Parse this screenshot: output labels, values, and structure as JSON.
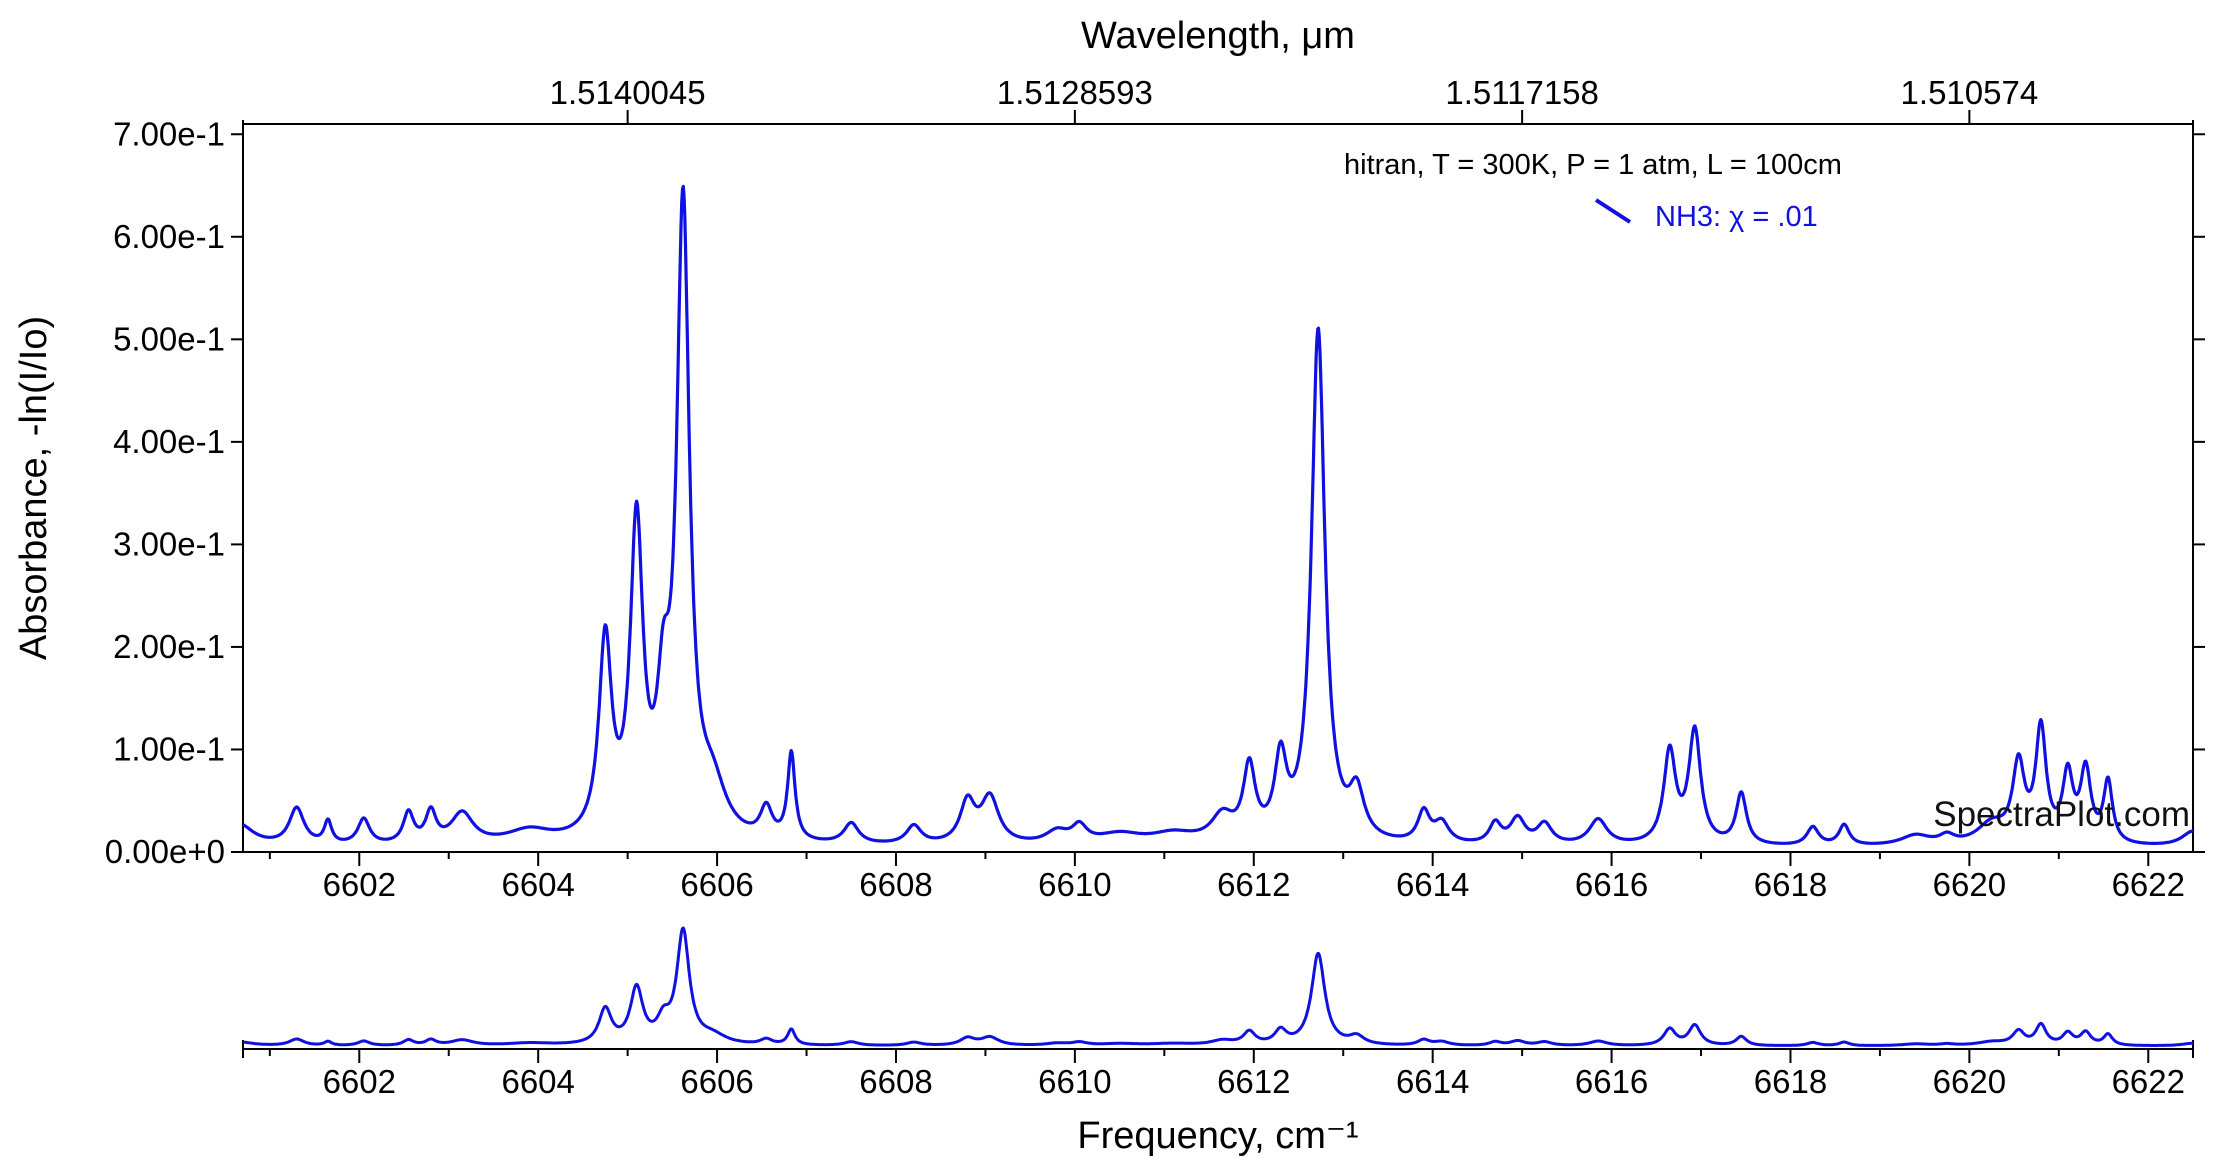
{
  "chart_data": {
    "type": "line",
    "title": "",
    "xlabel": "Frequency, cm⁻¹",
    "ylabel": "Absorbance, -ln(I/Io)",
    "top_axis_label": "Wavelength, μm",
    "top_tick_labels": [
      "1.5140045",
      "1.5128593",
      "1.5117158",
      "1.510574"
    ],
    "top_tick_positions": [
      6605.0,
      6610.0,
      6615.0,
      6620.0
    ],
    "xlim": [
      6600.7,
      6622.5
    ],
    "ylim": [
      0,
      0.71
    ],
    "x_ticks": [
      6602,
      6604,
      6606,
      6608,
      6610,
      6612,
      6614,
      6616,
      6618,
      6620,
      6622
    ],
    "x_tick_labels": [
      "6602",
      "6604",
      "6606",
      "6608",
      "6610",
      "6612",
      "6614",
      "6616",
      "6618",
      "6620",
      "6622"
    ],
    "y_ticks": [
      0,
      0.1,
      0.2,
      0.3,
      0.4,
      0.5,
      0.6,
      0.7
    ],
    "y_tick_labels": [
      "0.00e+0",
      "1.00e-1",
      "2.00e-1",
      "3.00e-1",
      "4.00e-1",
      "5.00e-1",
      "6.00e-1",
      "7.00e-1"
    ],
    "grid": false,
    "legend_position": "top-right",
    "legend_header": "hitran, T = 300K, P = 1 atm, L = 100cm",
    "series": [
      {
        "name": "NH3: χ = .01",
        "color": "#1010e0",
        "baseline": 0.004,
        "peaks": [
          [
            6600.65,
            0.022,
            0.2
          ],
          [
            6601.3,
            0.036,
            0.1
          ],
          [
            6601.65,
            0.022,
            0.05
          ],
          [
            6602.05,
            0.025,
            0.08
          ],
          [
            6602.55,
            0.03,
            0.07
          ],
          [
            6602.8,
            0.03,
            0.07
          ],
          [
            6603.15,
            0.03,
            0.15
          ],
          [
            6603.9,
            0.013,
            0.3
          ],
          [
            6604.75,
            0.19,
            0.085
          ],
          [
            6605.1,
            0.3,
            0.085
          ],
          [
            6605.4,
            0.11,
            0.085
          ],
          [
            6605.62,
            0.61,
            0.085
          ],
          [
            6605.95,
            0.045,
            0.18
          ],
          [
            6606.55,
            0.03,
            0.08
          ],
          [
            6606.83,
            0.085,
            0.05
          ],
          [
            6607.5,
            0.02,
            0.1
          ],
          [
            6608.2,
            0.018,
            0.1
          ],
          [
            6608.8,
            0.04,
            0.1
          ],
          [
            6609.05,
            0.045,
            0.12
          ],
          [
            6609.8,
            0.012,
            0.15
          ],
          [
            6610.05,
            0.016,
            0.1
          ],
          [
            6610.5,
            0.01,
            0.3
          ],
          [
            6611.1,
            0.01,
            0.3
          ],
          [
            6611.65,
            0.025,
            0.15
          ],
          [
            6611.95,
            0.07,
            0.08
          ],
          [
            6612.3,
            0.075,
            0.08
          ],
          [
            6612.72,
            0.5,
            0.09
          ],
          [
            6613.15,
            0.045,
            0.1
          ],
          [
            6613.9,
            0.03,
            0.08
          ],
          [
            6614.1,
            0.02,
            0.1
          ],
          [
            6614.7,
            0.02,
            0.08
          ],
          [
            6614.95,
            0.025,
            0.1
          ],
          [
            6615.25,
            0.02,
            0.1
          ],
          [
            6615.85,
            0.025,
            0.12
          ],
          [
            6616.65,
            0.09,
            0.08
          ],
          [
            6616.93,
            0.11,
            0.08
          ],
          [
            6617.45,
            0.05,
            0.07
          ],
          [
            6618.25,
            0.018,
            0.08
          ],
          [
            6618.6,
            0.02,
            0.07
          ],
          [
            6619.4,
            0.01,
            0.2
          ],
          [
            6619.75,
            0.008,
            0.1
          ],
          [
            6620.25,
            0.02,
            0.2
          ],
          [
            6620.55,
            0.075,
            0.08
          ],
          [
            6620.8,
            0.11,
            0.07
          ],
          [
            6621.1,
            0.065,
            0.07
          ],
          [
            6621.3,
            0.07,
            0.07
          ],
          [
            6621.55,
            0.06,
            0.06
          ],
          [
            6622.5,
            0.015,
            0.15
          ]
        ]
      }
    ]
  },
  "watermark": "SpectraPlot.com"
}
